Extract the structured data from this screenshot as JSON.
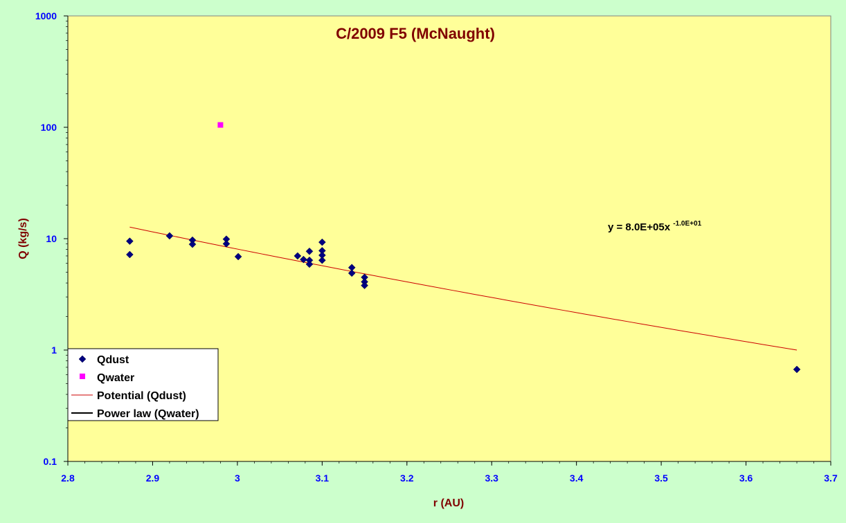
{
  "chart_data": {
    "type": "scatter",
    "title": "C/2009 F5 (McNaught)",
    "xlabel": "r (AU)",
    "ylabel": "Q (kg/s)",
    "xlim": [
      2.8,
      3.7
    ],
    "ylim": [
      0.1,
      1000
    ],
    "y_scale": "log",
    "x_ticks": [
      "2.8",
      "2.9",
      "3",
      "3.1",
      "3.2",
      "3.3",
      "3.4",
      "3.5",
      "3.6",
      "3.7"
    ],
    "y_ticks": [
      "0.1",
      "1",
      "10",
      "100",
      "1000"
    ],
    "grid": false,
    "legend_position": "bottom-left",
    "series": [
      {
        "name": "Qdust",
        "marker": "diamond",
        "color": "#000080",
        "points": [
          {
            "x": 2.873,
            "y": 9.5
          },
          {
            "x": 2.873,
            "y": 7.2
          },
          {
            "x": 2.92,
            "y": 10.6
          },
          {
            "x": 2.947,
            "y": 9.7
          },
          {
            "x": 2.947,
            "y": 8.9
          },
          {
            "x": 2.987,
            "y": 9.9
          },
          {
            "x": 2.987,
            "y": 9.0
          },
          {
            "x": 3.001,
            "y": 6.9
          },
          {
            "x": 3.071,
            "y": 7.0
          },
          {
            "x": 3.078,
            "y": 6.5
          },
          {
            "x": 3.085,
            "y": 7.7
          },
          {
            "x": 3.085,
            "y": 6.4
          },
          {
            "x": 3.085,
            "y": 5.9
          },
          {
            "x": 3.1,
            "y": 9.3
          },
          {
            "x": 3.1,
            "y": 7.8
          },
          {
            "x": 3.1,
            "y": 7.1
          },
          {
            "x": 3.1,
            "y": 6.4
          },
          {
            "x": 3.135,
            "y": 5.5
          },
          {
            "x": 3.135,
            "y": 4.9
          },
          {
            "x": 3.15,
            "y": 4.5
          },
          {
            "x": 3.15,
            "y": 4.1
          },
          {
            "x": 3.15,
            "y": 3.8
          },
          {
            "x": 3.66,
            "y": 0.67
          }
        ]
      },
      {
        "name": "Qwater",
        "marker": "square",
        "color": "#ff00ff",
        "points": [
          {
            "x": 2.98,
            "y": 105
          }
        ]
      },
      {
        "name": "Potential (Qdust)",
        "type": "trendline",
        "color": "#cc0000",
        "x_range": [
          2.873,
          3.66
        ],
        "y_at_ends": [
          12.7,
          1.0
        ]
      },
      {
        "name": "Power law (Qwater)",
        "type": "trendline",
        "color": "#000000"
      }
    ],
    "annotation": {
      "text": "y = 8.0E+05x",
      "exponent": "-1.0E+01"
    }
  }
}
